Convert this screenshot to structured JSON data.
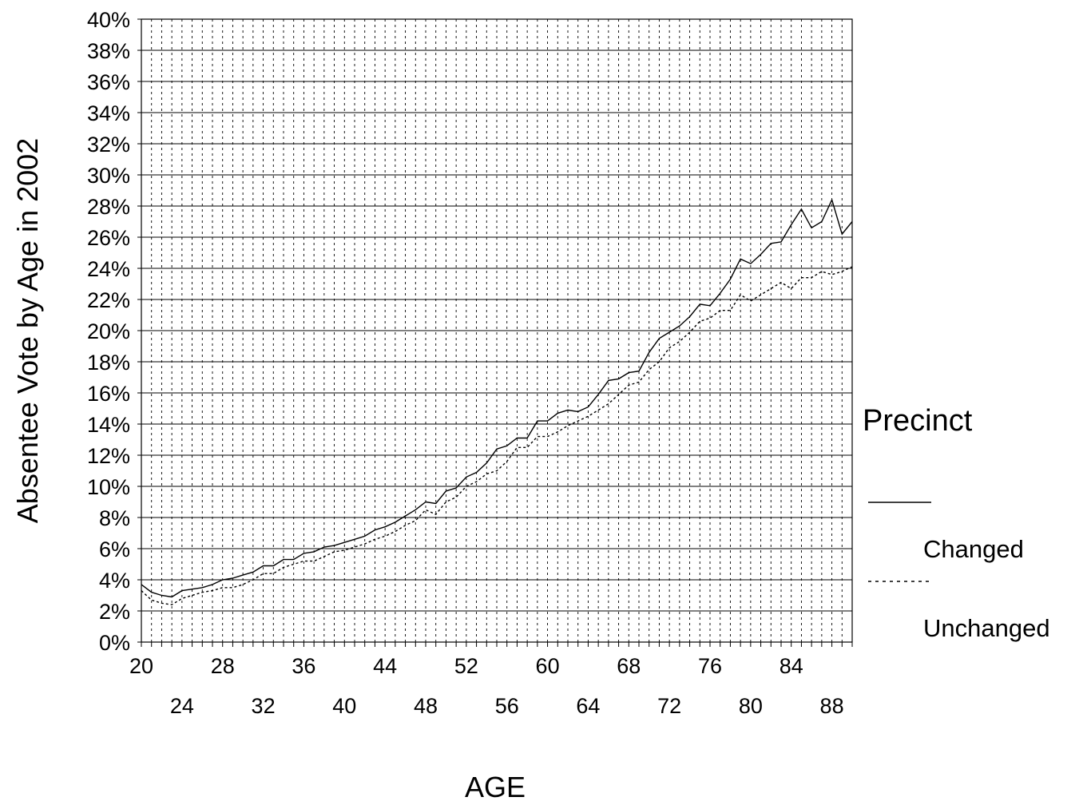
{
  "chart_data": {
    "type": "line",
    "title": "",
    "ylabel": "Absentee Vote by Age in 2002",
    "xlabel": "AGE",
    "x": [
      20,
      21,
      22,
      23,
      24,
      25,
      26,
      27,
      28,
      29,
      30,
      31,
      32,
      33,
      34,
      35,
      36,
      37,
      38,
      39,
      40,
      41,
      42,
      43,
      44,
      45,
      46,
      47,
      48,
      49,
      50,
      51,
      52,
      53,
      54,
      55,
      56,
      57,
      58,
      59,
      60,
      61,
      62,
      63,
      64,
      65,
      66,
      67,
      68,
      69,
      70,
      71,
      72,
      73,
      74,
      75,
      76,
      77,
      78,
      79,
      80,
      81,
      82,
      83,
      84,
      85,
      86,
      87,
      88,
      89,
      90
    ],
    "xlim": [
      20,
      90
    ],
    "ylim": [
      0,
      40
    ],
    "x_ticks_row1": [
      "20",
      "28",
      "36",
      "44",
      "52",
      "60",
      "68",
      "76",
      "84"
    ],
    "x_ticks_row2": [
      "24",
      "32",
      "40",
      "48",
      "56",
      "64",
      "72",
      "80",
      "88"
    ],
    "y_ticks": [
      "0%",
      "2%",
      "4%",
      "6%",
      "8%",
      "10%",
      "12%",
      "14%",
      "16%",
      "18%",
      "20%",
      "22%",
      "24%",
      "26%",
      "28%",
      "30%",
      "32%",
      "34%",
      "36%",
      "38%",
      "40%"
    ],
    "grid": true,
    "legend": {
      "title": "Precinct",
      "position": "right"
    },
    "series": [
      {
        "name": "Changed",
        "style": "solid",
        "values": [
          3.7,
          3.2,
          3.0,
          2.9,
          3.3,
          3.4,
          3.5,
          3.7,
          4.0,
          4.1,
          4.3,
          4.5,
          4.9,
          4.9,
          5.3,
          5.3,
          5.7,
          5.8,
          6.1,
          6.2,
          6.4,
          6.6,
          6.8,
          7.2,
          7.4,
          7.7,
          8.1,
          8.5,
          9.0,
          8.9,
          9.7,
          9.9,
          10.6,
          10.9,
          11.5,
          12.4,
          12.6,
          13.1,
          13.1,
          14.2,
          14.2,
          14.7,
          14.9,
          14.8,
          15.1,
          15.9,
          16.8,
          16.9,
          17.3,
          17.4,
          18.6,
          19.5,
          19.9,
          20.3,
          20.9,
          21.7,
          21.6,
          22.4,
          23.3,
          24.6,
          24.3,
          24.9,
          25.6,
          25.7,
          26.8,
          27.8,
          26.6,
          27.0,
          28.4,
          26.2,
          27.0
        ]
      },
      {
        "name": "Unchanged",
        "style": "dotted",
        "values": [
          3.3,
          2.7,
          2.5,
          2.4,
          2.8,
          3.0,
          3.2,
          3.3,
          3.5,
          3.5,
          3.7,
          4.0,
          4.4,
          4.4,
          4.8,
          5.0,
          5.2,
          5.2,
          5.5,
          5.8,
          5.9,
          6.1,
          6.3,
          6.6,
          6.8,
          7.1,
          7.5,
          7.8,
          8.5,
          8.2,
          9.0,
          9.3,
          10.0,
          10.3,
          10.8,
          11.0,
          11.6,
          12.5,
          12.5,
          13.2,
          13.2,
          13.5,
          13.9,
          14.2,
          14.5,
          14.9,
          15.3,
          15.9,
          16.5,
          16.7,
          17.5,
          18.0,
          18.9,
          19.3,
          19.9,
          20.6,
          20.8,
          21.3,
          21.3,
          22.3,
          21.9,
          22.3,
          22.7,
          23.1,
          22.7,
          23.4,
          23.4,
          23.8,
          23.6,
          23.8,
          24.1
        ]
      }
    ]
  }
}
